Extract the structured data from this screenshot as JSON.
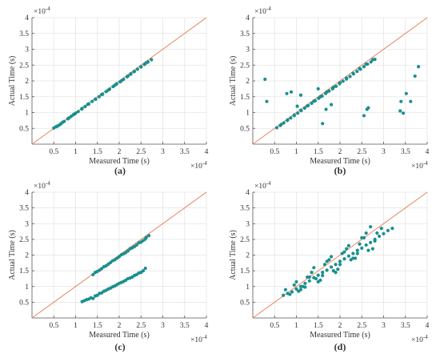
{
  "chart_data": [
    {
      "type": "scatter",
      "panel_label": "(a)",
      "xlabel": "Measured Time (s)",
      "ylabel": "Actual Time (s)",
      "x_exponent": "×10",
      "y_exponent": "×10",
      "exponent_power": "-4",
      "xlim": [
        0,
        4
      ],
      "ylim": [
        0,
        4
      ],
      "xticks": [
        "0.5",
        "1",
        "1.5",
        "2",
        "2.5",
        "3",
        "3.5",
        "4"
      ],
      "yticks": [
        "0.5",
        "1",
        "1.5",
        "2",
        "2.5",
        "3",
        "3.5",
        "4"
      ],
      "grid": true,
      "reference_line": {
        "x": [
          0,
          4
        ],
        "y": [
          0,
          4
        ],
        "color": "#e8845c"
      },
      "marker_color": "#1a8f8f",
      "x": [
        0.5,
        0.58,
        0.66,
        0.74,
        0.82,
        0.9,
        0.98,
        1.06,
        1.14,
        1.22,
        1.3,
        1.38,
        1.46,
        1.54,
        1.62,
        1.7,
        1.78,
        1.86,
        1.94,
        2.02,
        2.1,
        2.18,
        2.26,
        2.34,
        2.42,
        2.5,
        2.58,
        2.66,
        2.74,
        0.55,
        0.7,
        0.85,
        1.0,
        1.15,
        1.3,
        1.45,
        1.6,
        1.75,
        1.9,
        2.05,
        2.2,
        2.35,
        2.5,
        2.65,
        0.62,
        0.95,
        1.28,
        1.61,
        1.94,
        2.27,
        2.6
      ],
      "y": [
        0.51,
        0.57,
        0.64,
        0.72,
        0.8,
        0.88,
        0.96,
        1.03,
        1.11,
        1.19,
        1.27,
        1.35,
        1.42,
        1.5,
        1.58,
        1.66,
        1.74,
        1.82,
        1.9,
        1.97,
        2.05,
        2.13,
        2.21,
        2.29,
        2.37,
        2.44,
        2.52,
        2.6,
        2.67,
        0.55,
        0.69,
        0.83,
        0.98,
        1.13,
        1.27,
        1.42,
        1.57,
        1.71,
        1.86,
        2.0,
        2.15,
        2.3,
        2.45,
        2.59,
        0.6,
        0.93,
        1.26,
        1.58,
        1.91,
        2.23,
        2.55
      ]
    },
    {
      "type": "scatter",
      "panel_label": "(b)",
      "xlabel": "Measured Time (s)",
      "ylabel": "Actual Time (s)",
      "x_exponent": "×10",
      "y_exponent": "×10",
      "exponent_power": "-4",
      "xlim": [
        0,
        4
      ],
      "ylim": [
        0,
        4
      ],
      "xticks": [
        "0.5",
        "1",
        "1.5",
        "2",
        "2.5",
        "3",
        "3.5",
        "4"
      ],
      "yticks": [
        "0.5",
        "1",
        "1.5",
        "2",
        "2.5",
        "3",
        "3.5",
        "4"
      ],
      "grid": true,
      "reference_line": {
        "x": [
          0,
          4
        ],
        "y": [
          0,
          4
        ],
        "color": "#e8845c"
      },
      "marker_color": "#1a8f8f",
      "x": [
        0.55,
        0.63,
        0.71,
        0.79,
        0.87,
        0.95,
        1.03,
        1.11,
        1.19,
        1.27,
        1.35,
        1.43,
        1.51,
        1.59,
        1.67,
        1.75,
        1.83,
        1.91,
        1.99,
        2.07,
        2.15,
        2.23,
        2.31,
        2.39,
        2.47,
        2.55,
        2.63,
        2.71,
        2.8,
        0.65,
        0.8,
        0.95,
        1.1,
        1.25,
        1.4,
        1.55,
        1.7,
        1.85,
        2.0,
        2.15,
        2.3,
        2.45,
        2.6,
        2.75,
        0.28,
        0.32,
        0.78,
        0.88,
        1.02,
        1.1,
        1.5,
        1.6,
        1.68,
        1.8,
        2.55,
        2.62,
        3.38,
        3.45,
        3.52,
        3.62,
        3.72,
        3.8,
        2.65,
        3.4
      ],
      "y": [
        0.52,
        0.59,
        0.67,
        0.75,
        0.83,
        0.9,
        0.98,
        1.06,
        1.14,
        1.22,
        1.29,
        1.37,
        1.45,
        1.52,
        1.6,
        1.68,
        1.75,
        1.83,
        1.91,
        1.99,
        2.06,
        2.14,
        2.22,
        2.3,
        2.37,
        2.45,
        2.53,
        2.6,
        2.68,
        0.62,
        0.77,
        0.92,
        1.07,
        1.21,
        1.36,
        1.5,
        1.65,
        1.8,
        1.94,
        2.09,
        2.24,
        2.39,
        2.53,
        2.67,
        2.05,
        1.35,
        1.6,
        1.65,
        1.2,
        1.55,
        1.75,
        0.65,
        1.1,
        1.25,
        0.9,
        1.1,
        1.05,
        0.98,
        1.6,
        1.35,
        2.15,
        2.45,
        1.15,
        1.35
      ]
    },
    {
      "type": "scatter",
      "panel_label": "(c)",
      "xlabel": "Measured Time (s)",
      "ylabel": "Actual Time (s)",
      "x_exponent": "×10",
      "y_exponent": "×10",
      "exponent_power": "-4",
      "xlim": [
        0,
        4
      ],
      "ylim": [
        0,
        4
      ],
      "xticks": [
        "0.5",
        "1",
        "1.5",
        "2",
        "2.5",
        "3",
        "3.5",
        "4"
      ],
      "yticks": [
        "0.5",
        "1",
        "1.5",
        "2",
        "2.5",
        "3",
        "3.5",
        "4"
      ],
      "grid": true,
      "reference_line": {
        "x": [
          0,
          4
        ],
        "y": [
          0,
          4
        ],
        "color": "#e8845c"
      },
      "marker_color": "#1a8f8f",
      "x": [
        1.4,
        1.5,
        1.6,
        1.7,
        1.8,
        1.9,
        2.0,
        2.1,
        2.2,
        2.3,
        2.4,
        2.5,
        2.6,
        2.68,
        1.45,
        1.65,
        1.85,
        2.05,
        2.25,
        2.45,
        2.62,
        1.55,
        1.75,
        1.95,
        2.15,
        2.35,
        2.55,
        1.15,
        1.25,
        1.35,
        1.45,
        1.55,
        1.65,
        1.75,
        1.85,
        1.95,
        2.05,
        2.15,
        2.25,
        2.35,
        2.45,
        2.55,
        1.2,
        1.4,
        1.6,
        1.8,
        2.0,
        2.2,
        2.4,
        2.6,
        1.3,
        1.5,
        1.7,
        1.9,
        2.1,
        2.3,
        2.5
      ],
      "y": [
        1.38,
        1.48,
        1.57,
        1.66,
        1.76,
        1.85,
        1.95,
        2.04,
        2.13,
        2.23,
        2.32,
        2.41,
        2.51,
        2.62,
        1.45,
        1.63,
        1.82,
        2.01,
        2.2,
        2.39,
        2.56,
        1.52,
        1.71,
        1.9,
        2.08,
        2.27,
        2.46,
        0.52,
        0.58,
        0.64,
        0.7,
        0.78,
        0.85,
        0.92,
        0.99,
        1.06,
        1.13,
        1.2,
        1.27,
        1.35,
        1.43,
        1.5,
        0.55,
        0.62,
        0.8,
        0.95,
        1.1,
        1.25,
        1.38,
        1.58,
        0.6,
        0.72,
        0.88,
        1.02,
        1.16,
        1.3,
        1.45
      ]
    },
    {
      "type": "scatter",
      "panel_label": "(d)",
      "xlabel": "Measured Time (s)",
      "ylabel": "Actual Time (s)",
      "x_exponent": "×10",
      "y_exponent": "×10",
      "exponent_power": "-4",
      "xlim": [
        0,
        4
      ],
      "ylim": [
        0,
        4
      ],
      "xticks": [
        "0.5",
        "1",
        "1.5",
        "2",
        "2.5",
        "3",
        "3.5",
        "4"
      ],
      "yticks": [
        "0.5",
        "1",
        "1.5",
        "2",
        "2.5",
        "3",
        "3.5",
        "4"
      ],
      "grid": true,
      "reference_line": {
        "x": [
          0,
          4
        ],
        "y": [
          0,
          4
        ],
        "color": "#e8845c"
      },
      "marker_color": "#1a8f8f",
      "x": [
        0.7,
        0.8,
        0.9,
        1.0,
        1.1,
        1.2,
        1.3,
        1.4,
        1.5,
        1.6,
        1.7,
        1.8,
        1.9,
        2.0,
        2.1,
        2.2,
        2.3,
        2.4,
        2.5,
        2.6,
        2.7,
        2.8,
        2.9,
        3.0,
        3.1,
        3.2,
        0.75,
        0.95,
        1.15,
        1.35,
        1.55,
        1.75,
        1.95,
        2.15,
        2.35,
        2.55,
        2.75,
        2.95,
        0.85,
        1.05,
        1.25,
        1.45,
        1.65,
        1.85,
        2.05,
        2.25,
        2.45,
        2.65,
        2.85,
        1.0,
        1.2,
        1.4,
        1.6,
        1.8,
        2.0,
        2.2,
        2.4,
        2.6,
        2.8,
        1.1,
        1.3,
        1.5,
        1.7,
        1.9,
        2.1,
        2.3,
        2.5,
        2.7
      ],
      "y": [
        0.72,
        0.78,
        0.83,
        0.92,
        1.0,
        1.1,
        1.18,
        1.28,
        1.36,
        1.45,
        1.52,
        1.62,
        1.7,
        1.8,
        1.88,
        1.97,
        2.05,
        2.15,
        2.22,
        2.32,
        2.4,
        2.5,
        2.6,
        2.68,
        2.78,
        2.85,
        0.9,
        1.05,
        1.0,
        1.45,
        1.2,
        1.85,
        1.55,
        2.2,
        1.9,
        2.55,
        2.2,
        2.85,
        0.75,
        0.85,
        1.3,
        1.25,
        1.7,
        1.5,
        2.05,
        1.85,
        2.35,
        2.15,
        2.7,
        1.15,
        0.98,
        1.6,
        1.35,
        1.95,
        1.7,
        2.3,
        2.05,
        2.7,
        2.45,
        0.9,
        1.3,
        1.15,
        1.8,
        1.45,
        2.1,
        1.9,
        2.55,
        2.9
      ]
    }
  ]
}
